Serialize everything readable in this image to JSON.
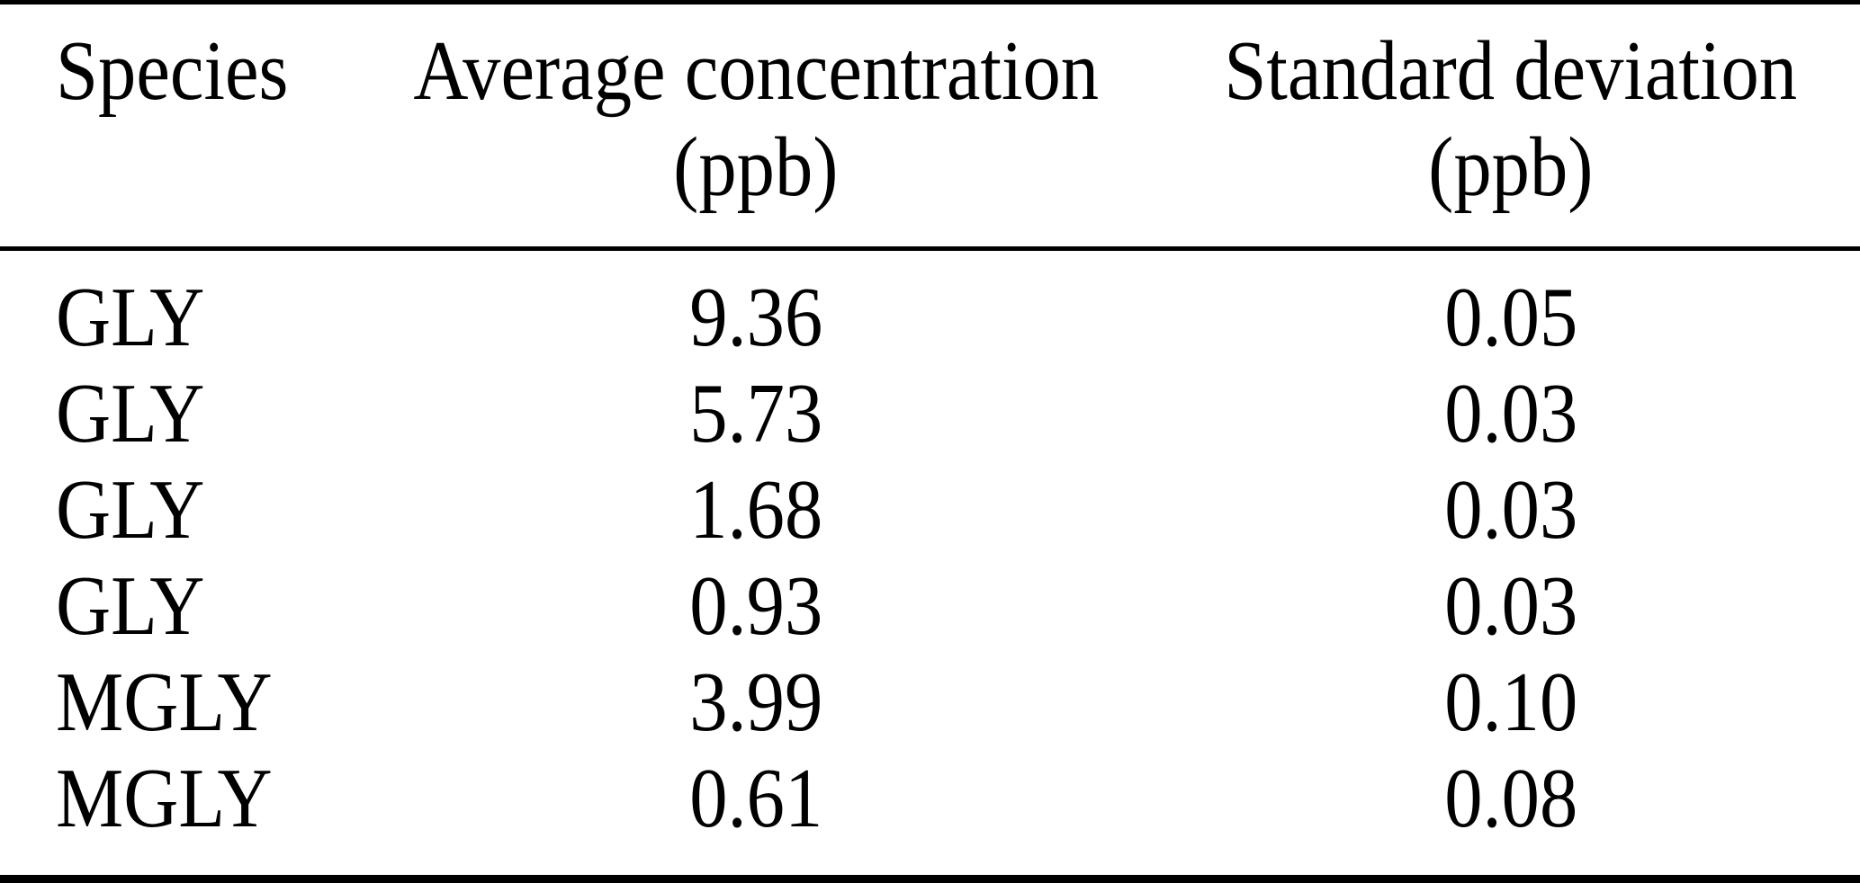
{
  "table": {
    "columns": [
      {
        "label": "Species",
        "unit": ""
      },
      {
        "label": "Average concentration",
        "unit": "(ppb)"
      },
      {
        "label": "Standard deviation",
        "unit": "(ppb)"
      }
    ],
    "rows": [
      {
        "species": "GLY",
        "avg": "9.36",
        "std": "0.05"
      },
      {
        "species": "GLY",
        "avg": "5.73",
        "std": "0.03"
      },
      {
        "species": "GLY",
        "avg": "1.68",
        "std": "0.03"
      },
      {
        "species": "GLY",
        "avg": "0.93",
        "std": "0.03"
      },
      {
        "species": "MGLY",
        "avg": "3.99",
        "std": "0.10"
      },
      {
        "species": "MGLY",
        "avg": "0.61",
        "std": "0.08"
      }
    ],
    "colors": {
      "text": "#000000",
      "background": "#ffffff",
      "rule": "#000000"
    }
  }
}
